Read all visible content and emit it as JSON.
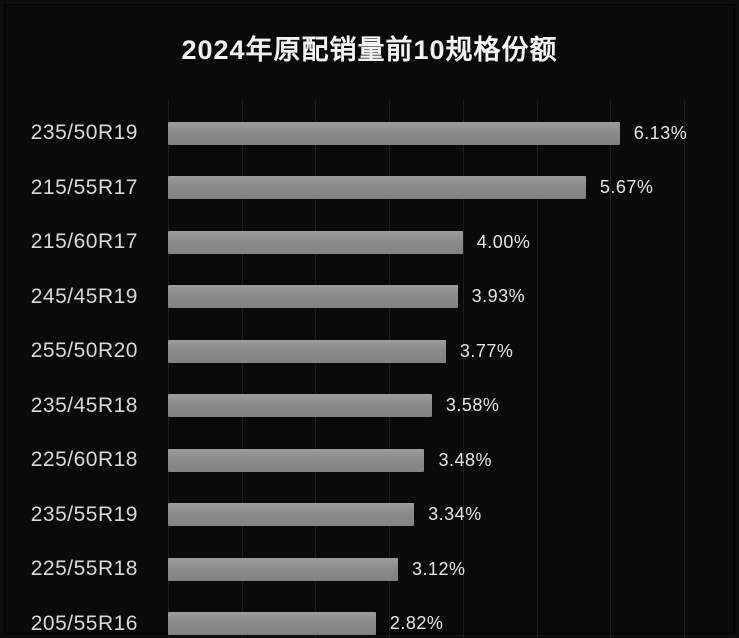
{
  "title": "2024年原配销量前10规格份额",
  "chart_data": {
    "type": "bar",
    "orientation": "horizontal",
    "title": "2024年原配销量前10规格份额",
    "categories": [
      "235/50R19",
      "215/55R17",
      "215/60R17",
      "245/45R19",
      "255/50R20",
      "235/45R18",
      "225/60R18",
      "235/55R19",
      "225/55R18",
      "205/55R16"
    ],
    "values": [
      6.13,
      5.67,
      4.0,
      3.93,
      3.77,
      3.58,
      3.48,
      3.34,
      3.12,
      2.82
    ],
    "value_labels": [
      "6.13%",
      "5.67%",
      "4.00%",
      "3.93%",
      "3.77%",
      "3.58%",
      "3.48%",
      "3.34%",
      "3.12%",
      "2.82%"
    ],
    "xlabel": "",
    "ylabel": "",
    "xlim": [
      0,
      7.75
    ],
    "gridline_values": [
      0,
      1,
      2,
      3,
      4,
      5,
      6,
      7
    ],
    "grid": "vertical-faint",
    "legend": "none",
    "colors": {
      "background": "#0a0a0a",
      "bar": "#8b8b8b",
      "title_text": "#f2f2f2",
      "category_text": "#d9d9d9",
      "value_text": "#e6e6e6",
      "gridline": "#1d1d1d"
    }
  }
}
